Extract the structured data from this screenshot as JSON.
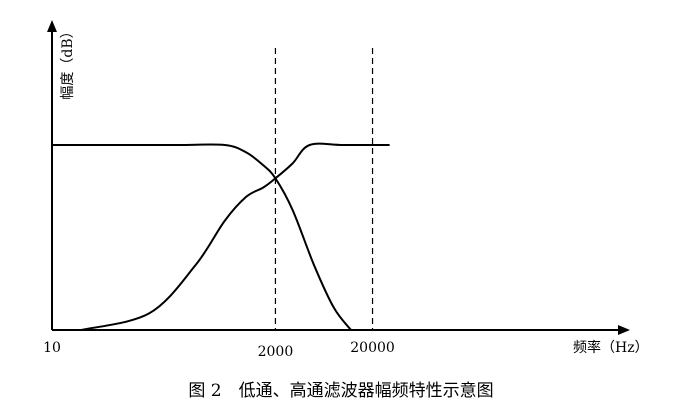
{
  "chart_data": {
    "type": "line",
    "title": "",
    "xlabel": "频率（Hz）",
    "ylabel": "幅度（dB）",
    "x_scale": "log",
    "x_ticks": [
      "10",
      "2000",
      "20000"
    ],
    "reference_lines_x": [
      2000,
      20000
    ],
    "grid": false,
    "legend": "none",
    "series": [
      {
        "x": [
          10,
          50,
          200,
          600,
          1000,
          1500,
          2000,
          3000,
          5000,
          8000,
          12000
        ],
        "y": [
          1.0,
          1.0,
          1.0,
          1.0,
          0.96,
          0.89,
          0.82,
          0.65,
          0.35,
          0.12,
          0.0
        ]
      },
      {
        "x": [
          20,
          100,
          300,
          600,
          1000,
          1500,
          2000,
          3000,
          4500,
          10000,
          30000
        ],
        "y": [
          0.0,
          0.09,
          0.35,
          0.59,
          0.72,
          0.77,
          0.82,
          0.9,
          1.0,
          1.0,
          1.0
        ]
      }
    ]
  },
  "caption": "图 2　低通、高通滤波器幅频特性示意图"
}
